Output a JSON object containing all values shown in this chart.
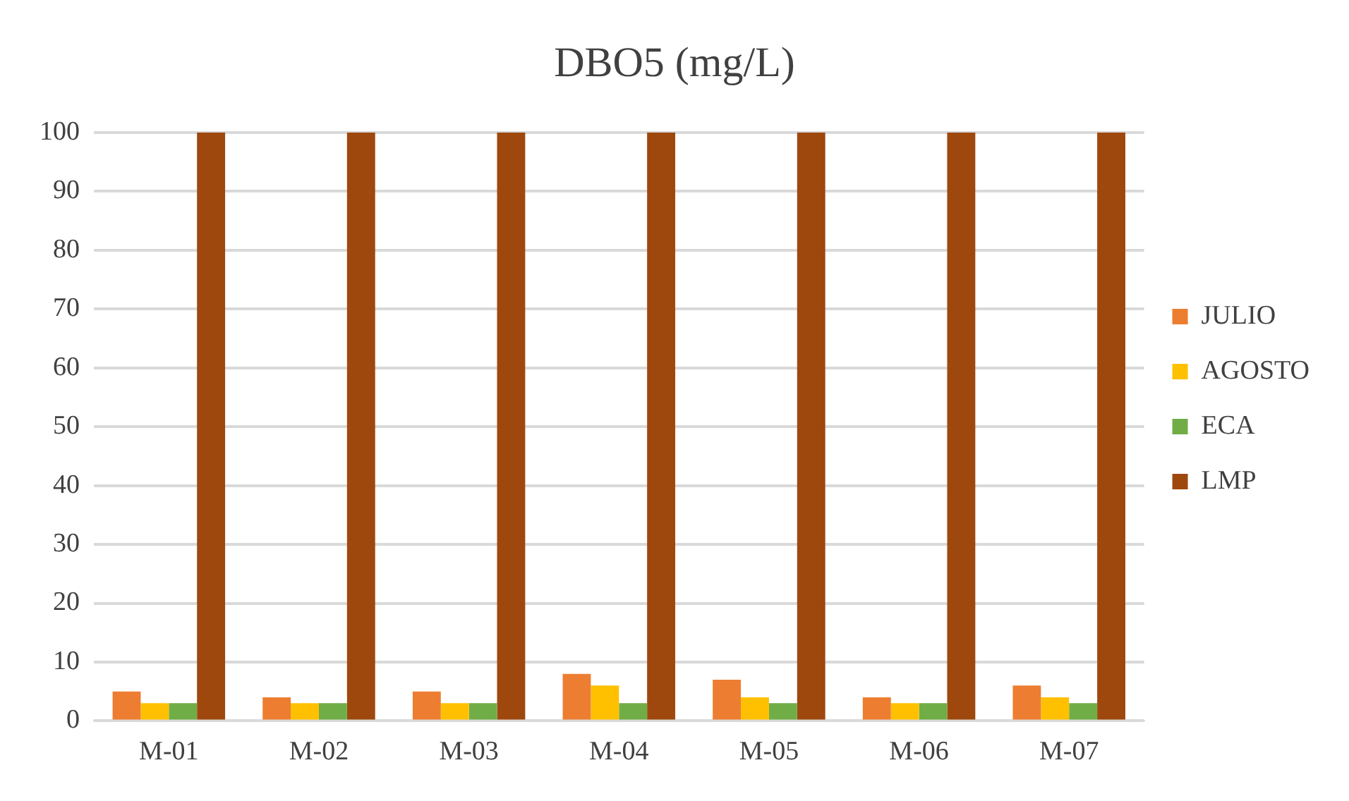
{
  "chart_data": {
    "type": "bar",
    "title": "DBO5 (mg/L)",
    "categories": [
      "M-01",
      "M-02",
      "M-03",
      "M-04",
      "M-05",
      "M-06",
      "M-07"
    ],
    "series": [
      {
        "name": "JULIO",
        "color": "#ed7d31",
        "values": [
          5,
          4,
          5,
          8,
          7,
          4,
          6
        ]
      },
      {
        "name": "AGOSTO",
        "color": "#ffc000",
        "values": [
          3,
          3,
          3,
          6,
          4,
          3,
          4
        ]
      },
      {
        "name": "ECA",
        "color": "#70ad47",
        "values": [
          3,
          3,
          3,
          3,
          3,
          3,
          3
        ]
      },
      {
        "name": "LMP",
        "color": "#9e480e",
        "values": [
          100,
          100,
          100,
          100,
          100,
          100,
          100
        ]
      }
    ],
    "ylim": [
      0,
      100
    ],
    "yticks": [
      0,
      10,
      20,
      30,
      40,
      50,
      60,
      70,
      80,
      90,
      100
    ],
    "grid": "y",
    "legend": "right"
  }
}
